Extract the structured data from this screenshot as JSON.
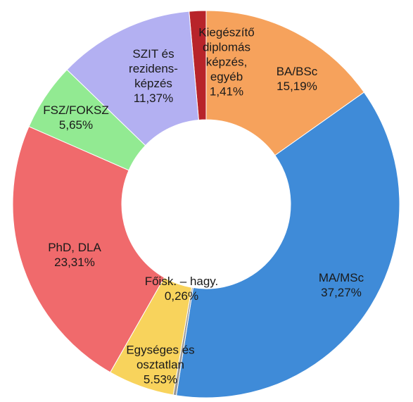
{
  "chart_data": {
    "type": "donut",
    "categories": [
      "Kiegészítő diplomás képzés, egyéb",
      "BA/BSc",
      "MA/MSc",
      "Főisk. – hagy.",
      "Egységes és osztatlan",
      "PhD, DLA",
      "FSZ/FOKSZ",
      "SZIT és rezidens-képzés"
    ],
    "values": [
      1.41,
      15.19,
      37.27,
      0.26,
      5.53,
      23.31,
      5.65,
      11.37
    ],
    "value_labels": [
      "1,41%",
      "15,19%",
      "37,27%",
      "0,26%",
      "5.53%",
      "23,31%",
      "5,65%",
      "11,37%"
    ],
    "colors": [
      "#b8242a",
      "#f6a25c",
      "#3f8bd8",
      "#9a9a9a",
      "#f8d35c",
      "#f06a6c",
      "#92ea92",
      "#b3b0f2"
    ]
  }
}
